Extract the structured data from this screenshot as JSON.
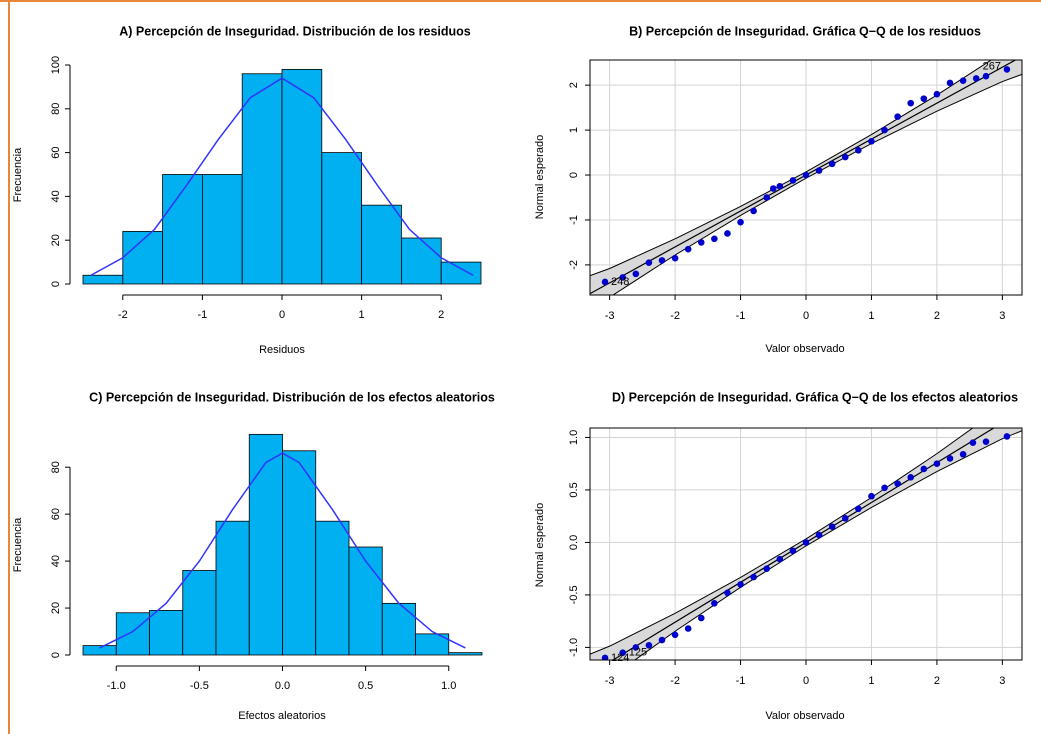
{
  "chart_data": [
    {
      "type": "histogram",
      "title": "A) Percepción de Inseguridad. Distribución de los residuos",
      "x_label": "Residuos",
      "y_label": "Frecuencia",
      "bins": [
        -2.5,
        -2,
        -1.5,
        -1,
        -0.5,
        0,
        0.5,
        1,
        1.5,
        2,
        2.5
      ],
      "values": [
        4,
        24,
        50,
        50,
        96,
        98,
        60,
        36,
        21,
        10
      ],
      "color": "#00b0f0",
      "curve": {
        "color": "#3333ff",
        "x": [
          -2.4,
          -2,
          -1.6,
          -1.2,
          -0.8,
          -0.4,
          0,
          0.4,
          0.8,
          1.2,
          1.6,
          2,
          2.4
        ],
        "values": [
          4,
          12,
          25,
          45,
          66,
          85,
          94,
          85,
          66,
          45,
          25,
          12,
          4
        ]
      },
      "xlim": [
        -2.5,
        2.5
      ],
      "ylim": [
        0,
        100
      ],
      "xticks": [
        -2,
        -1,
        0,
        1,
        2
      ],
      "yticks": [
        0,
        20,
        40,
        60,
        80,
        100
      ]
    },
    {
      "type": "qq",
      "title": "B) Percepción de Inseguridad. Gráfica Q−Q de los residuos",
      "x_label": "Valor observado",
      "y_label": "Normal esperado",
      "x": [
        -3.07,
        -2.8,
        -2.6,
        -2.4,
        -2.2,
        -2.0,
        -1.8,
        -1.6,
        -1.4,
        -1.2,
        -1.0,
        -0.8,
        -0.6,
        -0.5,
        -0.4,
        -0.2,
        0,
        0.2,
        0.4,
        0.6,
        0.8,
        1.0,
        1.2,
        1.4,
        1.6,
        1.8,
        2.0,
        2.2,
        2.4,
        2.6,
        2.75,
        3.07
      ],
      "values": [
        -2.38,
        -2.28,
        -2.2,
        -1.95,
        -1.9,
        -1.85,
        -1.65,
        -1.5,
        -1.42,
        -1.3,
        -1.05,
        -0.8,
        -0.5,
        -0.3,
        -0.25,
        -0.12,
        0,
        0.1,
        0.25,
        0.4,
        0.55,
        0.75,
        1.0,
        1.3,
        1.6,
        1.7,
        1.8,
        2.05,
        2.1,
        2.15,
        2.2,
        2.35
      ],
      "color": "#0000cc",
      "reference_line": {
        "x": [
          -3.3,
          3.3
        ],
        "values": [
          -2.64,
          2.64
        ]
      },
      "envelope": {
        "x": [
          -3.3,
          -3,
          -2,
          -1,
          0,
          1,
          2,
          3,
          3.3
        ],
        "lower": [
          -3.04,
          -2.72,
          -1.78,
          -0.9,
          -0.07,
          0.7,
          1.42,
          2.08,
          2.24
        ],
        "upper": [
          -2.24,
          -2.08,
          -1.42,
          -0.7,
          0.07,
          0.9,
          1.78,
          2.72,
          3.04
        ]
      },
      "annotations": [
        {
          "text": "267",
          "x": 3.07,
          "y": 2.35
        },
        {
          "text": "248",
          "x": -3.07,
          "y": -2.38
        }
      ],
      "xlim": [
        -3.3,
        3.3
      ],
      "ylim": [
        -2.67,
        2.56
      ],
      "xticks": [
        -3,
        -2,
        -1,
        0,
        1,
        2,
        3
      ],
      "yticks": [
        -2,
        -1,
        0,
        1,
        2
      ],
      "grid": true
    },
    {
      "type": "histogram",
      "title": "C) Percepción de Inseguridad. Distribución de los efectos aleatorios",
      "x_label": "Efectos aleatorios",
      "y_label": "Frecuencia",
      "bins": [
        -1.2,
        -1.0,
        -0.8,
        -0.6,
        -0.4,
        -0.2,
        0,
        0.2,
        0.4,
        0.6,
        0.8,
        1.0,
        1.2
      ],
      "values": [
        4,
        18,
        19,
        36,
        57,
        94,
        87,
        57,
        46,
        22,
        9,
        1
      ],
      "color": "#00b0f0",
      "curve": {
        "color": "#3333ff",
        "x": [
          -1.1,
          -0.9,
          -0.7,
          -0.5,
          -0.3,
          -0.1,
          0,
          0.1,
          0.3,
          0.5,
          0.7,
          0.9,
          1.1
        ],
        "values": [
          3,
          10,
          22,
          40,
          62,
          82,
          86,
          82,
          62,
          40,
          22,
          10,
          3
        ]
      },
      "xlim": [
        -1.2,
        1.2
      ],
      "ylim": [
        0,
        95
      ],
      "xticks": [
        {
          "value": -1,
          "label": "-1.0"
        },
        {
          "value": -0.5,
          "label": "-0.5"
        },
        {
          "value": 0,
          "label": "0.0"
        },
        {
          "value": 0.5,
          "label": "0.5"
        },
        {
          "value": 1,
          "label": "1.0"
        }
      ],
      "yticks": [
        0,
        20,
        40,
        60,
        80
      ]
    },
    {
      "type": "qq",
      "title": "D) Percepción de Inseguridad. Gráfica Q−Q de los efectos aleatorios",
      "x_label": "Valor observado",
      "y_label": "Normal esperado",
      "x": [
        -3.07,
        -2.8,
        -2.6,
        -2.4,
        -2.2,
        -2.0,
        -1.8,
        -1.6,
        -1.4,
        -1.2,
        -1.0,
        -0.8,
        -0.6,
        -0.4,
        -0.2,
        0,
        0.2,
        0.4,
        0.6,
        0.8,
        1.0,
        1.2,
        1.4,
        1.6,
        1.8,
        2.0,
        2.2,
        2.4,
        2.55,
        2.75,
        3.07
      ],
      "values": [
        -1.1,
        -1.05,
        -1.0,
        -0.98,
        -0.93,
        -0.88,
        -0.82,
        -0.72,
        -0.58,
        -0.48,
        -0.4,
        -0.33,
        -0.25,
        -0.16,
        -0.08,
        0,
        0.07,
        0.15,
        0.23,
        0.32,
        0.44,
        0.52,
        0.56,
        0.62,
        0.7,
        0.75,
        0.8,
        0.84,
        0.95,
        0.96,
        1.01
      ],
      "color": "#0000cc",
      "reference_line": {
        "x": [
          -3.3,
          3.3
        ],
        "values": [
          -1.254,
          1.254
        ]
      },
      "envelope": {
        "x": [
          -3.3,
          -3,
          -2,
          -1,
          0,
          1,
          2,
          3,
          3.3
        ],
        "lower": [
          -1.444,
          -1.292,
          -0.846,
          -0.428,
          -0.033,
          0.333,
          0.675,
          0.988,
          1.064
        ],
        "upper": [
          -1.064,
          -0.988,
          -0.675,
          -0.333,
          0.033,
          0.428,
          0.846,
          1.292,
          1.444
        ]
      },
      "annotations": [
        {
          "text": "124",
          "x": -3.07,
          "y": -1.1
        },
        {
          "text": "125",
          "x": -2.8,
          "y": -1.05
        }
      ],
      "xlim": [
        -3.3,
        3.3
      ],
      "ylim": [
        -1.12,
        1.09
      ],
      "xticks": [
        -3,
        -2,
        -1,
        0,
        1,
        2,
        3
      ],
      "yticks": [
        {
          "value": -1,
          "label": "-1.0"
        },
        {
          "value": -0.5,
          "label": "-0.5"
        },
        {
          "value": 0,
          "label": "0.0"
        },
        {
          "value": 0.5,
          "label": "0.5"
        },
        {
          "value": 1,
          "label": "1.0"
        }
      ],
      "grid": true
    }
  ]
}
